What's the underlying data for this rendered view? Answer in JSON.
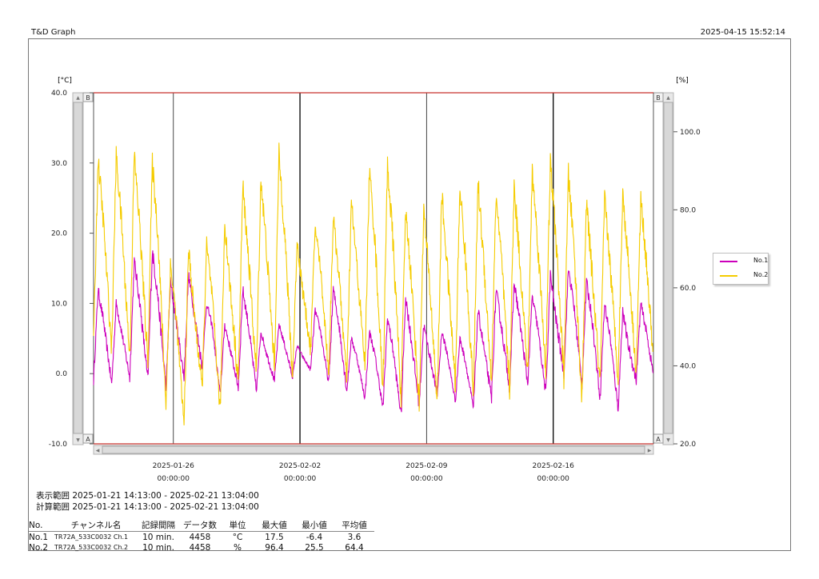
{
  "header": {
    "app_title": "T&D Graph",
    "printed_at": "2025-04-15 15:52:14"
  },
  "chart_data": {
    "type": "line",
    "left_axis": {
      "unit": "[°C]",
      "min": -10,
      "max": 40,
      "ticks": [
        "40.0",
        "30.0",
        "20.0",
        "10.0",
        "0.0",
        "-10.0"
      ]
    },
    "right_axis": {
      "unit": "[%]",
      "min": 20,
      "max": 110,
      "ticks": [
        "100.0",
        "80.0",
        "60.0",
        "40.0",
        "20.0"
      ]
    },
    "x_range": [
      "2025-01-21 14:13",
      "2025-02-21 13:04"
    ],
    "x_ticks": [
      {
        "date": "2025-01-26",
        "time": "00:00:00",
        "day": 4.41
      },
      {
        "date": "2025-02-02",
        "time": "00:00:00",
        "day": 11.41
      },
      {
        "date": "2025-02-09",
        "time": "00:00:00",
        "day": 18.41
      },
      {
        "date": "2025-02-16",
        "time": "00:00:00",
        "day": 25.41
      }
    ],
    "day_span": 30.95,
    "scroll_labels": {
      "top": "B",
      "bottom": "A"
    },
    "legend_position": "right",
    "series": [
      {
        "name": "No.1",
        "axis": "left",
        "color": "#cc00bb",
        "daily_min": [
          -1.0,
          -1.5,
          -0.5,
          -1.0,
          -2.0,
          -0.5,
          1.0,
          -3.0,
          -2.0,
          -2.5,
          -1.0,
          -0.5,
          0.5,
          -1.5,
          -2.5,
          -3.5,
          -5.0,
          -6.0,
          -4.5,
          -3.0,
          -4.0,
          -5.0,
          -3.5,
          -2.0,
          -1.5,
          -3.0,
          0.0,
          -1.5,
          -3.5,
          -5.0,
          -1.0
        ],
        "daily_max": [
          12.0,
          10.0,
          16.0,
          17.5,
          13.0,
          14.0,
          10.0,
          7.0,
          12.0,
          6.0,
          7.0,
          4.0,
          9.0,
          12.0,
          5.0,
          6.0,
          8.0,
          11.0,
          7.0,
          6.0,
          5.0,
          9.0,
          12.0,
          13.0,
          11.0,
          14.0,
          15.0,
          13.0,
          10.0,
          9.0,
          10.0
        ]
      },
      {
        "name": "No.2",
        "axis": "right",
        "color": "#f5cc00",
        "daily_min": [
          46,
          44,
          42,
          41,
          30,
          25,
          34,
          28,
          36,
          38,
          40,
          37,
          44,
          38,
          36,
          40,
          34,
          32,
          30,
          31,
          35,
          33,
          36,
          34,
          38,
          39,
          37,
          31,
          35,
          37,
          38
        ],
        "daily_max": [
          93,
          94,
          94,
          92,
          66,
          70,
          71,
          77,
          86,
          88,
          94,
          72,
          76,
          78,
          82,
          90,
          92,
          80,
          80,
          84,
          86,
          87,
          84,
          86,
          90,
          92,
          89,
          82,
          83,
          84,
          83
        ]
      }
    ]
  },
  "range_info": {
    "display": "表示範囲 2025-01-21 14:13:00 - 2025-02-21 13:04:00",
    "calc": "計算範囲 2025-01-21 14:13:00 - 2025-02-21 13:04:00"
  },
  "stats_table": {
    "headers": [
      "No.",
      "チャンネル名",
      "記録間隔",
      "データ数",
      "単位",
      "最大値",
      "最小値",
      "平均値"
    ],
    "rows": [
      [
        "No.1",
        "TR72A_533C0032 Ch.1",
        "10 min.",
        "4458",
        "°C",
        "17.5",
        "-6.4",
        "3.6"
      ],
      [
        "No.2",
        "TR72A_533C0032 Ch.2",
        "10 min.",
        "4458",
        "%",
        "96.4",
        "25.5",
        "64.4"
      ]
    ]
  }
}
